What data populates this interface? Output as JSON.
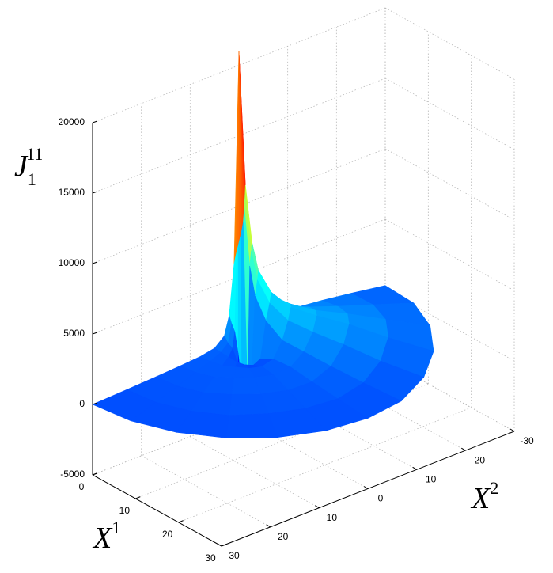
{
  "chart_data": {
    "type": "surface3d",
    "colormap": "jet",
    "grid": true,
    "z_label": {
      "base": "J",
      "sub": "1",
      "sup": "11"
    },
    "x1_label": {
      "base": "X",
      "sup": "1"
    },
    "x2_label": {
      "base": "X",
      "sup": "2"
    },
    "x1lim": [
      0,
      30
    ],
    "x1ticks": [
      0,
      10,
      20,
      30
    ],
    "x2lim": [
      -30,
      30
    ],
    "x2ticks": [
      -30,
      -20,
      -10,
      0,
      10,
      20,
      30
    ],
    "zlim": [
      -5000,
      20000
    ],
    "zticks": [
      -5000,
      0,
      5000,
      10000,
      15000,
      20000
    ],
    "theta": [
      0,
      15,
      30,
      45,
      60,
      75,
      90,
      105,
      120,
      135,
      150,
      165,
      180
    ],
    "r": [
      0,
      1,
      2,
      3,
      5,
      8,
      12,
      17,
      23,
      30
    ],
    "z": [
      [
        21000,
        6000,
        2500,
        1200,
        600,
        400,
        300,
        200,
        100,
        0
      ],
      [
        21000,
        6500,
        2000,
        800,
        500,
        400,
        300,
        200,
        100,
        0
      ],
      [
        21000,
        7000,
        1500,
        500,
        300,
        300,
        300,
        200,
        100,
        0
      ],
      [
        21000,
        7500,
        0,
        -500,
        0,
        300,
        400,
        300,
        100,
        0
      ],
      [
        21000,
        8000,
        -2000,
        -1000,
        -200,
        200,
        400,
        300,
        200,
        0
      ],
      [
        21000,
        8500,
        -3500,
        -1500,
        -300,
        200,
        400,
        300,
        200,
        0
      ],
      [
        21000,
        9000,
        -3000,
        -1000,
        0,
        500,
        600,
        400,
        200,
        0
      ],
      [
        21000,
        10000,
        6000,
        4000,
        2500,
        1500,
        1200,
        800,
        400,
        0
      ],
      [
        21000,
        11000,
        7000,
        5000,
        3500,
        2500,
        2000,
        1500,
        800,
        200
      ],
      [
        21000,
        11500,
        7500,
        5500,
        4000,
        3000,
        2500,
        2000,
        1200,
        400
      ],
      [
        21000,
        11000,
        7000,
        5000,
        3500,
        2800,
        2200,
        1800,
        1200,
        500
      ],
      [
        21000,
        10000,
        6000,
        4000,
        2800,
        2200,
        1800,
        1400,
        1000,
        500
      ],
      [
        21000,
        9000,
        5000,
        3000,
        2000,
        1500,
        1200,
        1000,
        700,
        300
      ]
    ]
  }
}
